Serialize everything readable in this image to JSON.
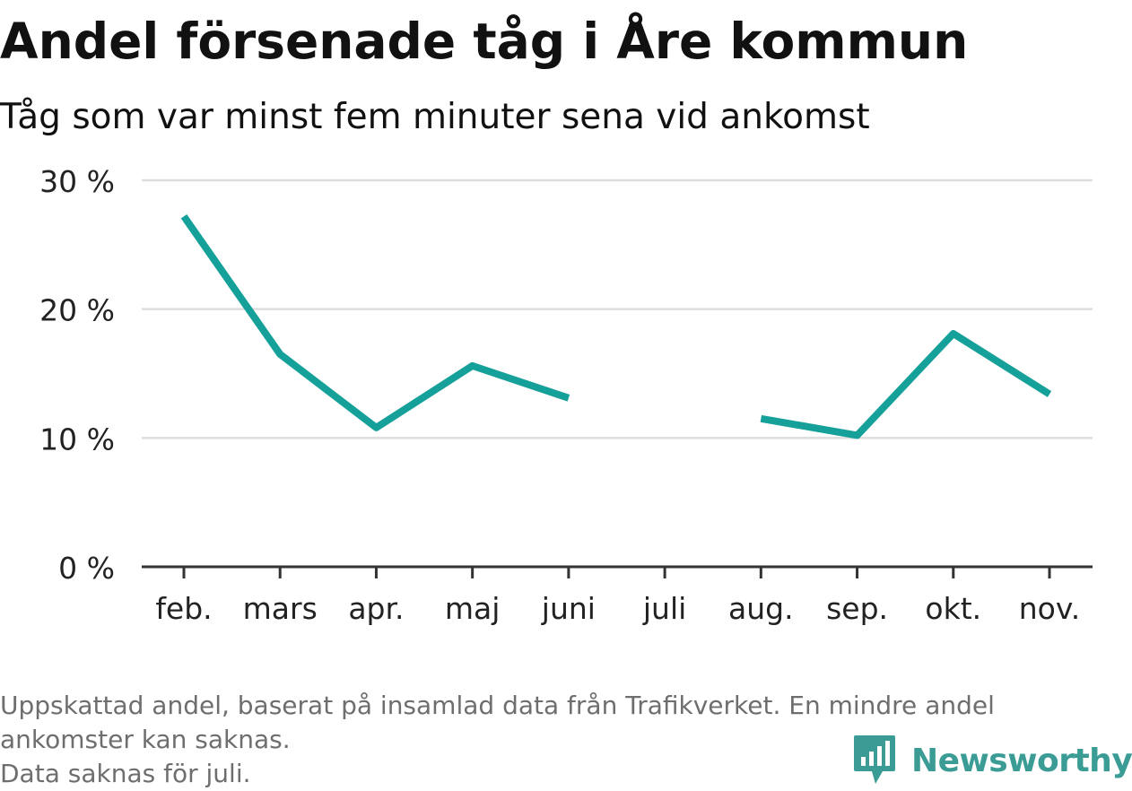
{
  "title": "Andel försenade tåg i Åre kommun",
  "subtitle": "Tåg som var minst fem minuter sena vid ankomst",
  "footnote": {
    "line1": "Uppskattad andel, baserat på insamlad data från Trafikverket. En mindre andel",
    "line2": "ankomster kan saknas.",
    "line3": "Data saknas för juli."
  },
  "logo": {
    "text": "Newsworthy",
    "icon": "bar-chart-speech-bubble-icon",
    "color": "#3a9c95"
  },
  "colors": {
    "line": "#15a19a",
    "grid": "#dddddd",
    "axis": "#333333",
    "tick_label": "#222222"
  },
  "chart_data": {
    "type": "line",
    "categories": [
      "feb.",
      "mars",
      "apr.",
      "maj",
      "juni",
      "juli",
      "aug.",
      "sep.",
      "okt.",
      "nov."
    ],
    "series": [
      {
        "values": [
          27.2,
          16.5,
          10.8,
          15.6,
          13.1,
          null,
          11.5,
          10.2,
          18.1,
          13.4
        ]
      }
    ],
    "y_ticks": [
      "0 %",
      "10 %",
      "20 %",
      "30 %"
    ],
    "ylim": [
      0,
      30
    ],
    "grid": true,
    "xlabel": "",
    "ylabel": ""
  }
}
